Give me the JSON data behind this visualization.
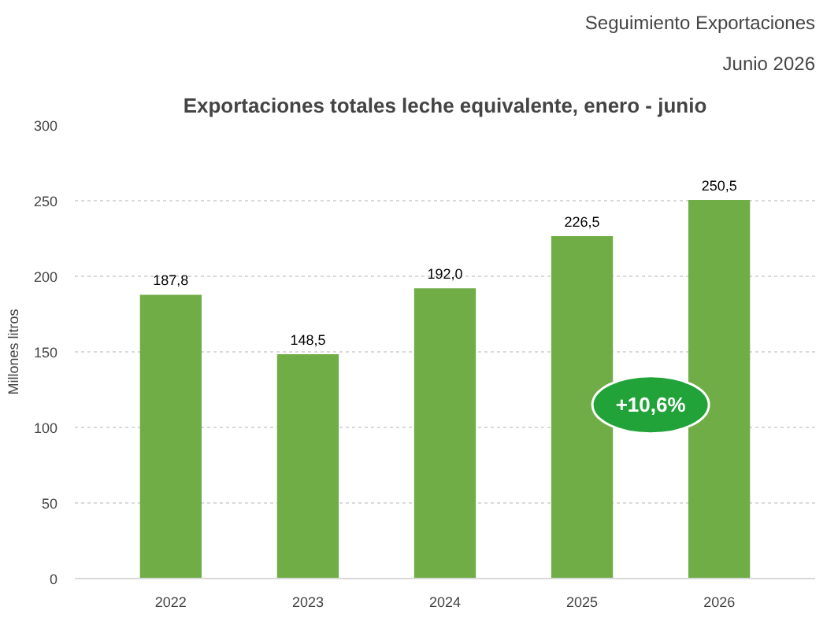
{
  "chart_data": {
    "type": "bar",
    "title": "Exportaciones totales leche equivalente, enero - junio",
    "ylabel": "Millones litros",
    "annotations": [
      "Seguimiento Exportaciones",
      "Junio 2026",
      "+10,6%"
    ],
    "categories": [
      "2022",
      "2023",
      "2024",
      "2025",
      "2026"
    ],
    "values": [
      187.8,
      148.5,
      192.0,
      226.5,
      250.5
    ],
    "value_labels": [
      "187,8",
      "148,5",
      "192,0",
      "226,5",
      "250,5"
    ],
    "color": "#70ad47",
    "ylim": [
      0,
      300
    ],
    "yticks": [
      0,
      50,
      100,
      150,
      200,
      250,
      300
    ],
    "grid": "y"
  }
}
